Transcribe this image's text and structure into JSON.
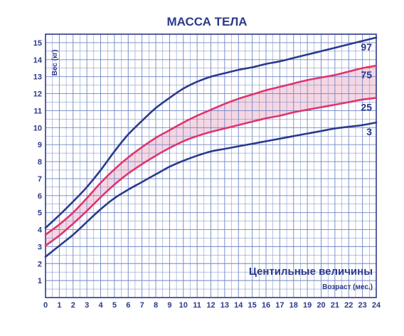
{
  "chart_data": {
    "type": "line",
    "title": "МАССА ТЕЛА",
    "ylabel": "Вес (кг)",
    "xlabel": "Возраст (мес.)",
    "annotation": "Центильные величины",
    "xlim": [
      0,
      24
    ],
    "ylim": [
      0,
      15.5
    ],
    "x_ticks": [
      "0",
      "1",
      "2",
      "3",
      "4",
      "5",
      "6",
      "7",
      "8",
      "9",
      "10",
      "11",
      "12",
      "13",
      "14",
      "15",
      "16",
      "17",
      "18",
      "19",
      "20",
      "21",
      "22",
      "23",
      "24"
    ],
    "y_ticks": [
      "1",
      "2",
      "3",
      "4",
      "5",
      "6",
      "7",
      "8",
      "9",
      "10",
      "11",
      "12",
      "13",
      "14",
      "15"
    ],
    "grid": true,
    "x": [
      0,
      1,
      2,
      3,
      4,
      5,
      6,
      7,
      8,
      9,
      10,
      11,
      12,
      13,
      14,
      15,
      16,
      17,
      18,
      19,
      20,
      21,
      22,
      23,
      24
    ],
    "series": [
      {
        "name": "97",
        "color": "#2b3a8c",
        "values": [
          4.1,
          4.85,
          5.65,
          6.5,
          7.5,
          8.6,
          9.6,
          10.4,
          11.15,
          11.75,
          12.3,
          12.7,
          13.0,
          13.2,
          13.4,
          13.55,
          13.75,
          13.9,
          14.1,
          14.3,
          14.5,
          14.7,
          14.9,
          15.1,
          15.3
        ]
      },
      {
        "name": "75",
        "color": "#e0336e",
        "values": [
          3.7,
          4.3,
          5.0,
          5.85,
          6.75,
          7.55,
          8.25,
          8.85,
          9.4,
          9.85,
          10.3,
          10.7,
          11.05,
          11.4,
          11.7,
          11.95,
          12.2,
          12.4,
          12.6,
          12.8,
          12.95,
          13.1,
          13.3,
          13.5,
          13.65
        ]
      },
      {
        "name": "25",
        "color": "#e0336e",
        "values": [
          3.05,
          3.65,
          4.35,
          5.1,
          5.9,
          6.65,
          7.3,
          7.85,
          8.35,
          8.8,
          9.2,
          9.5,
          9.75,
          9.95,
          10.15,
          10.35,
          10.55,
          10.7,
          10.9,
          11.05,
          11.2,
          11.35,
          11.5,
          11.65,
          11.75
        ]
      },
      {
        "name": "3",
        "color": "#2b3a8c",
        "values": [
          2.4,
          3.05,
          3.7,
          4.45,
          5.2,
          5.85,
          6.35,
          6.8,
          7.25,
          7.7,
          8.05,
          8.35,
          8.6,
          8.75,
          8.9,
          9.05,
          9.2,
          9.35,
          9.5,
          9.65,
          9.8,
          9.95,
          10.05,
          10.15,
          10.3
        ]
      }
    ],
    "band_between": [
      "75",
      "25"
    ],
    "colors": {
      "axis": "#2b3a8c",
      "grid": "#6f86c6",
      "band": "#f2c8d8"
    }
  }
}
